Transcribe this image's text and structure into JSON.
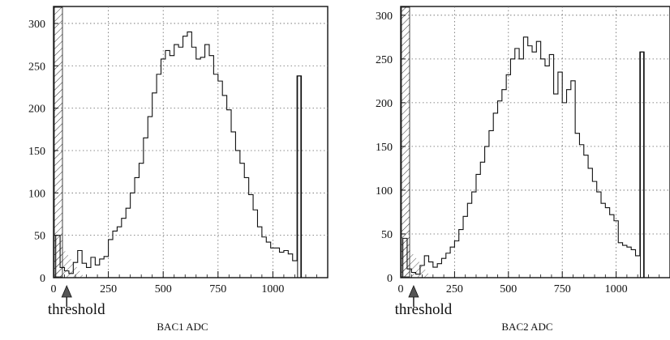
{
  "chart_data": [
    {
      "type": "histogram",
      "xlabel": "BAC1 ADC",
      "annotation": "threshold",
      "xlim": [
        0,
        1250
      ],
      "ylim": [
        0,
        320
      ],
      "xticks": [
        0,
        250,
        500,
        750,
        1000
      ],
      "yticks": [
        0,
        50,
        100,
        150,
        200,
        250,
        300
      ],
      "grid": "dotted",
      "threshold_x": 60,
      "bin_width": 20,
      "bins": [
        {
          "x": 20,
          "y": 50
        },
        {
          "x": 40,
          "y": 12
        },
        {
          "x": 60,
          "y": 8
        },
        {
          "x": 80,
          "y": 5
        },
        {
          "x": 100,
          "y": 18
        },
        {
          "x": 120,
          "y": 32
        },
        {
          "x": 140,
          "y": 17
        },
        {
          "x": 160,
          "y": 12
        },
        {
          "x": 180,
          "y": 24
        },
        {
          "x": 200,
          "y": 15
        },
        {
          "x": 220,
          "y": 22
        },
        {
          "x": 240,
          "y": 25
        },
        {
          "x": 260,
          "y": 45
        },
        {
          "x": 280,
          "y": 55
        },
        {
          "x": 300,
          "y": 60
        },
        {
          "x": 320,
          "y": 70
        },
        {
          "x": 340,
          "y": 82
        },
        {
          "x": 360,
          "y": 100
        },
        {
          "x": 380,
          "y": 118
        },
        {
          "x": 400,
          "y": 135
        },
        {
          "x": 420,
          "y": 165
        },
        {
          "x": 440,
          "y": 190
        },
        {
          "x": 460,
          "y": 218
        },
        {
          "x": 480,
          "y": 240
        },
        {
          "x": 500,
          "y": 258
        },
        {
          "x": 520,
          "y": 268
        },
        {
          "x": 540,
          "y": 262
        },
        {
          "x": 560,
          "y": 275
        },
        {
          "x": 580,
          "y": 272
        },
        {
          "x": 600,
          "y": 285
        },
        {
          "x": 620,
          "y": 290
        },
        {
          "x": 640,
          "y": 272
        },
        {
          "x": 660,
          "y": 258
        },
        {
          "x": 680,
          "y": 260
        },
        {
          "x": 700,
          "y": 275
        },
        {
          "x": 720,
          "y": 262
        },
        {
          "x": 740,
          "y": 240
        },
        {
          "x": 760,
          "y": 232
        },
        {
          "x": 780,
          "y": 215
        },
        {
          "x": 800,
          "y": 198
        },
        {
          "x": 820,
          "y": 172
        },
        {
          "x": 840,
          "y": 150
        },
        {
          "x": 860,
          "y": 135
        },
        {
          "x": 880,
          "y": 118
        },
        {
          "x": 900,
          "y": 98
        },
        {
          "x": 920,
          "y": 80
        },
        {
          "x": 940,
          "y": 60
        },
        {
          "x": 960,
          "y": 48
        },
        {
          "x": 980,
          "y": 42
        },
        {
          "x": 1000,
          "y": 35
        },
        {
          "x": 1020,
          "y": 35
        },
        {
          "x": 1040,
          "y": 30
        },
        {
          "x": 1060,
          "y": 32
        },
        {
          "x": 1080,
          "y": 28
        },
        {
          "x": 1100,
          "y": 20
        },
        {
          "x": 1120,
          "y": 238
        }
      ]
    },
    {
      "type": "histogram",
      "xlabel": "BAC2 ADC",
      "annotation": "threshold",
      "xlim": [
        0,
        1250
      ],
      "ylim": [
        0,
        310
      ],
      "xticks": [
        0,
        250,
        500,
        750,
        1000
      ],
      "yticks": [
        0,
        50,
        100,
        150,
        200,
        250,
        300
      ],
      "grid": "dotted",
      "threshold_x": 60,
      "bin_width": 20,
      "bins": [
        {
          "x": 20,
          "y": 45
        },
        {
          "x": 40,
          "y": 10
        },
        {
          "x": 60,
          "y": 6
        },
        {
          "x": 80,
          "y": 4
        },
        {
          "x": 100,
          "y": 14
        },
        {
          "x": 120,
          "y": 25
        },
        {
          "x": 140,
          "y": 18
        },
        {
          "x": 160,
          "y": 12
        },
        {
          "x": 180,
          "y": 16
        },
        {
          "x": 200,
          "y": 22
        },
        {
          "x": 220,
          "y": 28
        },
        {
          "x": 240,
          "y": 35
        },
        {
          "x": 260,
          "y": 42
        },
        {
          "x": 280,
          "y": 55
        },
        {
          "x": 300,
          "y": 70
        },
        {
          "x": 320,
          "y": 85
        },
        {
          "x": 340,
          "y": 98
        },
        {
          "x": 360,
          "y": 118
        },
        {
          "x": 380,
          "y": 132
        },
        {
          "x": 400,
          "y": 150
        },
        {
          "x": 420,
          "y": 168
        },
        {
          "x": 440,
          "y": 188
        },
        {
          "x": 460,
          "y": 202
        },
        {
          "x": 480,
          "y": 215
        },
        {
          "x": 500,
          "y": 232
        },
        {
          "x": 520,
          "y": 250
        },
        {
          "x": 540,
          "y": 262
        },
        {
          "x": 560,
          "y": 250
        },
        {
          "x": 580,
          "y": 275
        },
        {
          "x": 600,
          "y": 265
        },
        {
          "x": 620,
          "y": 258
        },
        {
          "x": 640,
          "y": 270
        },
        {
          "x": 660,
          "y": 250
        },
        {
          "x": 680,
          "y": 242
        },
        {
          "x": 700,
          "y": 255
        },
        {
          "x": 720,
          "y": 210
        },
        {
          "x": 740,
          "y": 235
        },
        {
          "x": 760,
          "y": 200
        },
        {
          "x": 780,
          "y": 215
        },
        {
          "x": 800,
          "y": 225
        },
        {
          "x": 820,
          "y": 165
        },
        {
          "x": 840,
          "y": 152
        },
        {
          "x": 860,
          "y": 140
        },
        {
          "x": 880,
          "y": 125
        },
        {
          "x": 900,
          "y": 110
        },
        {
          "x": 920,
          "y": 98
        },
        {
          "x": 940,
          "y": 85
        },
        {
          "x": 960,
          "y": 80
        },
        {
          "x": 980,
          "y": 72
        },
        {
          "x": 1000,
          "y": 65
        },
        {
          "x": 1020,
          "y": 40
        },
        {
          "x": 1040,
          "y": 37
        },
        {
          "x": 1060,
          "y": 35
        },
        {
          "x": 1080,
          "y": 32
        },
        {
          "x": 1100,
          "y": 25
        },
        {
          "x": 1120,
          "y": 258
        }
      ]
    }
  ]
}
